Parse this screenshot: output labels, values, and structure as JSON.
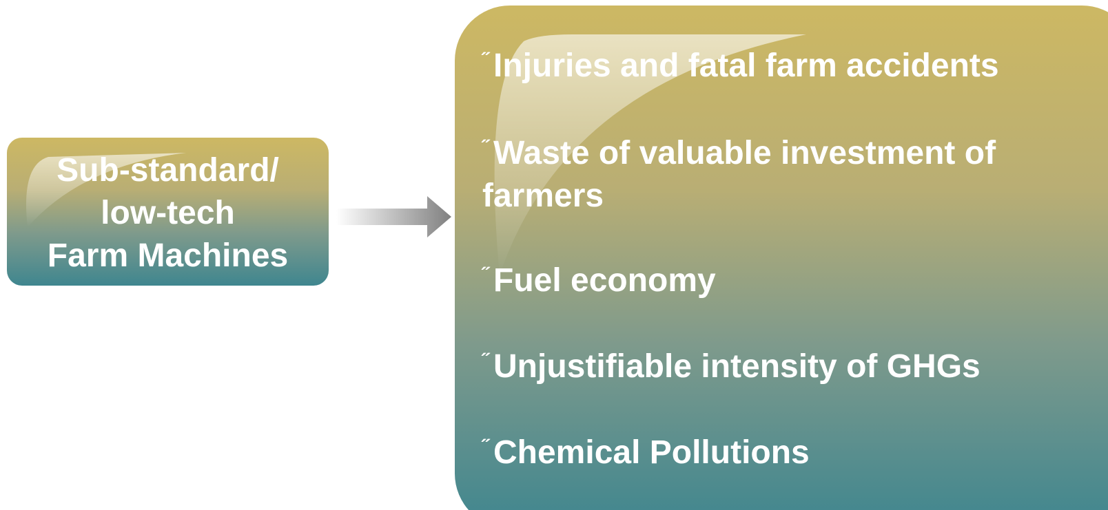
{
  "source": {
    "lines": [
      "Sub-standard/",
      "low-tech",
      "Farm Machines"
    ]
  },
  "bullet": "˝",
  "effects": [
    "Injuries and fatal farm accidents",
    "Waste of valuable investment of farmers",
    "Fuel economy",
    "Unjustifiable intensity of GHGs",
    "Chemical Pollutions"
  ]
}
